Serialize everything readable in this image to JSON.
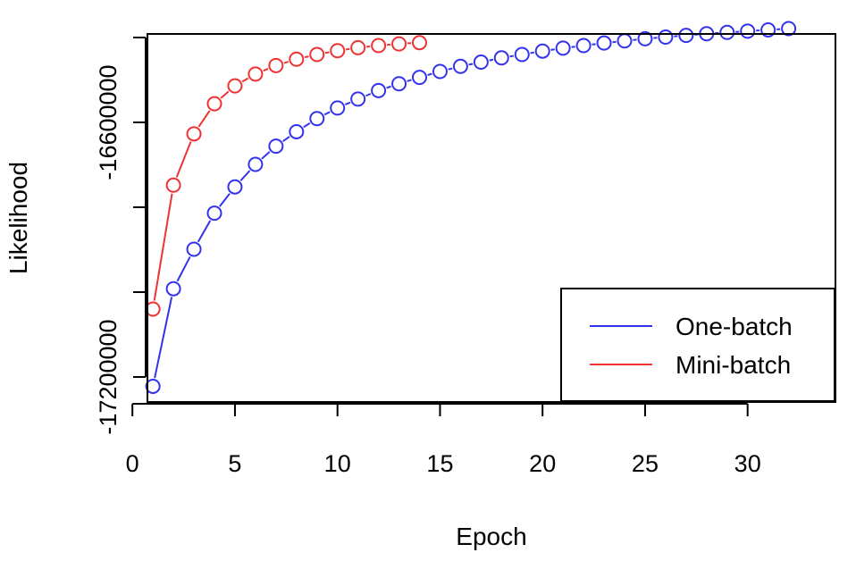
{
  "chart_data": {
    "type": "line",
    "title": "",
    "xlabel": "Epoch",
    "ylabel": "Likelihood",
    "xlim": [
      0,
      33
    ],
    "ylim": [
      -17300000,
      -16020000
    ],
    "x_ticks": [
      0,
      5,
      10,
      15,
      20,
      25,
      30
    ],
    "y_ticks": [
      -17200000,
      -17000000,
      -16800000,
      -16600000,
      -16400000
    ],
    "y_tick_labels": [
      "-17200000",
      "",
      "",
      "-16600000",
      ""
    ],
    "grid": false,
    "legend_position": "bottom-right",
    "series": [
      {
        "name": "One-batch",
        "color": "#3333ee",
        "x": [
          1,
          2,
          3,
          4,
          5,
          6,
          7,
          8,
          9,
          10,
          11,
          12,
          13,
          14,
          15,
          16,
          17,
          18,
          19,
          20,
          21,
          22,
          23,
          24,
          25,
          26,
          27,
          28,
          29,
          30,
          31,
          32
        ],
        "values": [
          -17222000,
          -16992000,
          -16899000,
          -16814000,
          -16752000,
          -16699000,
          -16656000,
          -16622000,
          -16591000,
          -16566000,
          -16545000,
          -16525000,
          -16509000,
          -16494000,
          -16480000,
          -16468000,
          -16458000,
          -16448000,
          -16440000,
          -16432000,
          -16425000,
          -16419000,
          -16413000,
          -16408000,
          -16403000,
          -16399000,
          -16395000,
          -16391000,
          -16388000,
          -16385000,
          -16382000,
          -16379000
        ]
      },
      {
        "name": "Mini-batch",
        "color": "#ee3333",
        "x": [
          1,
          2,
          3,
          4,
          5,
          6,
          7,
          8,
          9,
          10,
          11,
          12,
          13,
          14
        ],
        "values": [
          -17040000,
          -16748000,
          -16627000,
          -16556000,
          -16514000,
          -16486000,
          -16466000,
          -16451000,
          -16440000,
          -16431000,
          -16424000,
          -16419000,
          -16415000,
          -16412000
        ]
      }
    ]
  }
}
